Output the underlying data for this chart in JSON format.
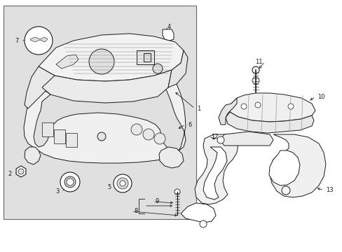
{
  "background_color": "#ffffff",
  "box_facecolor": "#e8e8e8",
  "line_color": "#1a1a1a",
  "figure_width": 4.89,
  "figure_height": 3.6,
  "dpi": 100,
  "label_fontsize": 6.0
}
